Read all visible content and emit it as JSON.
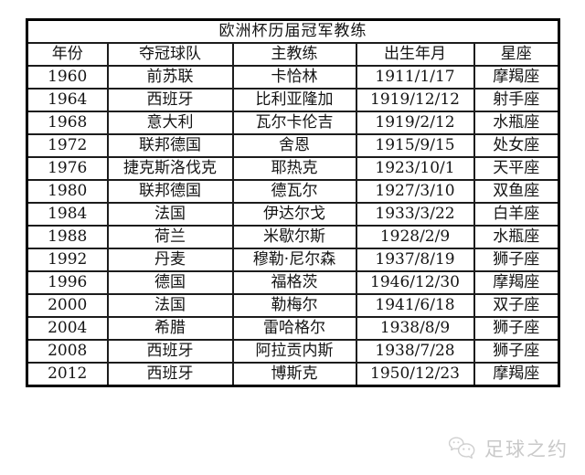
{
  "page": {
    "background": "#ffffff"
  },
  "chart_data": {
    "type": "table",
    "title": "欧洲杯历届冠军教练",
    "columns": [
      "年份",
      "夺冠球队",
      "主教练",
      "出生年月",
      "星座"
    ],
    "rows": [
      [
        "1960",
        "前苏联",
        "卡恰林",
        "1911/1/17",
        "摩羯座"
      ],
      [
        "1964",
        "西班牙",
        "比利亚隆加",
        "1919/12/12",
        "射手座"
      ],
      [
        "1968",
        "意大利",
        "瓦尔卡伦吉",
        "1919/2/12",
        "水瓶座"
      ],
      [
        "1972",
        "联邦德国",
        "舍恩",
        "1915/9/15",
        "处女座"
      ],
      [
        "1976",
        "捷克斯洛伐克",
        "耶热克",
        "1923/10/1",
        "天平座"
      ],
      [
        "1980",
        "联邦德国",
        "德瓦尔",
        "1927/3/10",
        "双鱼座"
      ],
      [
        "1984",
        "法国",
        "伊达尔戈",
        "1933/3/22",
        "白羊座"
      ],
      [
        "1988",
        "荷兰",
        "米歇尔斯",
        "1928/2/9",
        "水瓶座"
      ],
      [
        "1992",
        "丹麦",
        "穆勒·尼尔森",
        "1937/8/19",
        "狮子座"
      ],
      [
        "1996",
        "德国",
        "福格茨",
        "1946/12/30",
        "摩羯座"
      ],
      [
        "2000",
        "法国",
        "勒梅尔",
        "1941/6/18",
        "双子座"
      ],
      [
        "2004",
        "希腊",
        "雷哈格尔",
        "1938/8/9",
        "狮子座"
      ],
      [
        "2008",
        "西班牙",
        "阿拉贡内斯",
        "1938/7/28",
        "狮子座"
      ],
      [
        "2012",
        "西班牙",
        "博斯克",
        "1950/12/23",
        "摩羯座"
      ]
    ],
    "layout": {
      "grid": "all-borders",
      "title_position": "top-merged-row"
    }
  },
  "watermark": {
    "label": "足球之约",
    "icon": "wechat-icon",
    "color": "#c9c9c9"
  },
  "colors": {
    "table_border": "#000000",
    "cell_border": "#1c1c1c",
    "text": "#141414"
  }
}
